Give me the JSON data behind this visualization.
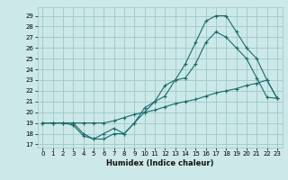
{
  "xlabel": "Humidex (Indice chaleur)",
  "x_ticks": [
    0,
    1,
    2,
    3,
    4,
    5,
    6,
    7,
    8,
    9,
    10,
    11,
    12,
    13,
    14,
    15,
    16,
    17,
    18,
    19,
    20,
    21,
    22,
    23
  ],
  "y_ticks": [
    17,
    18,
    19,
    20,
    21,
    22,
    23,
    24,
    25,
    26,
    27,
    28,
    29
  ],
  "xlim": [
    -0.5,
    23.5
  ],
  "ylim": [
    16.7,
    29.8
  ],
  "bg_color": "#cce8e8",
  "grid_color": "#9dc8c8",
  "line_color": "#1a6b6b",
  "line1_x": [
    0,
    1,
    2,
    3,
    4,
    5,
    6,
    7,
    8,
    9,
    10,
    11,
    12,
    13,
    14,
    15,
    16,
    17,
    18,
    19,
    20,
    21,
    22,
    23
  ],
  "line1_y": [
    19,
    19,
    19,
    18.8,
    17.8,
    17.5,
    17.5,
    18,
    18,
    19,
    20.4,
    21,
    21.5,
    23,
    23.2,
    24.5,
    26.5,
    27.5,
    27,
    26,
    25,
    23.2,
    21.4,
    21.3
  ],
  "line2_x": [
    0,
    1,
    2,
    3,
    4,
    5,
    6,
    7,
    8,
    9,
    10,
    11,
    12,
    13,
    14,
    15,
    16,
    17,
    18,
    19,
    20,
    21,
    22,
    23
  ],
  "line2_y": [
    19,
    19,
    19,
    19,
    18,
    17.5,
    18,
    18.5,
    18,
    19,
    20,
    21,
    22.5,
    23,
    24.5,
    26.5,
    28.5,
    29,
    29,
    27.5,
    26,
    25,
    23,
    21.3
  ],
  "line3_x": [
    0,
    1,
    2,
    3,
    4,
    5,
    6,
    7,
    8,
    9,
    10,
    11,
    12,
    13,
    14,
    15,
    16,
    17,
    18,
    19,
    20,
    21,
    22,
    23
  ],
  "line3_y": [
    19,
    19,
    19,
    19,
    19,
    19,
    19,
    19.2,
    19.5,
    19.8,
    20,
    20.2,
    20.5,
    20.8,
    21,
    21.2,
    21.5,
    21.8,
    22,
    22.2,
    22.5,
    22.7,
    23,
    21.3
  ]
}
